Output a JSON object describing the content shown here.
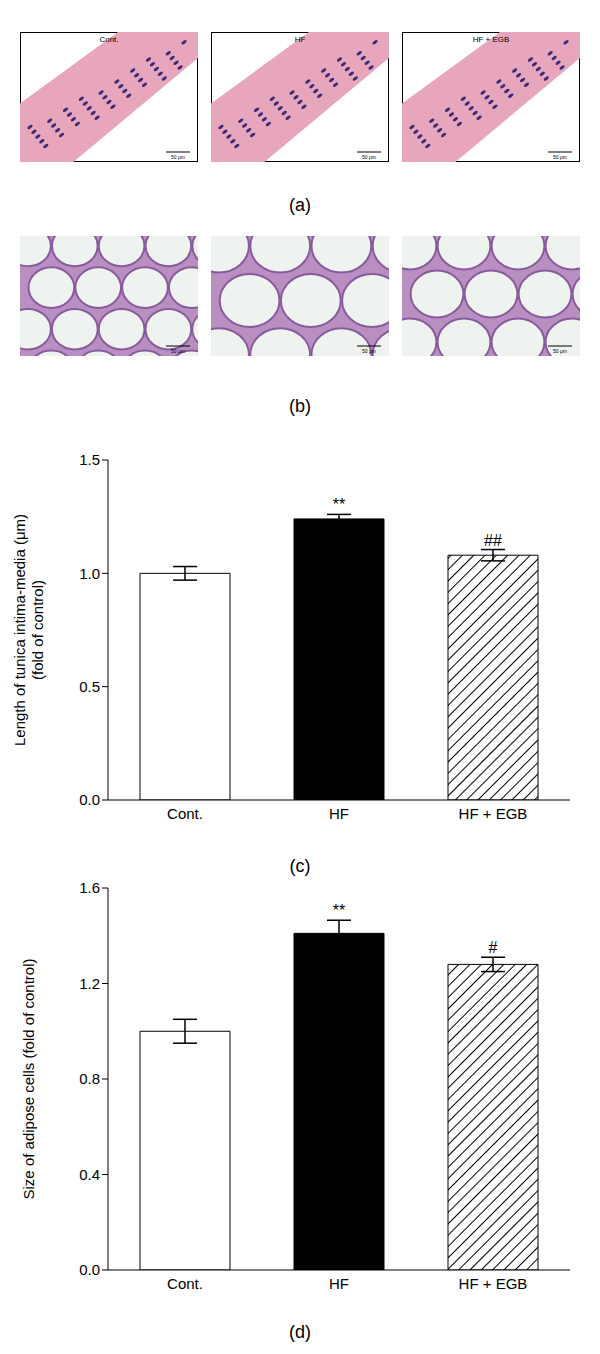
{
  "images": [
    {
      "label": "(a)",
      "panels": [
        "Cont.",
        "HF",
        "HF + EGB"
      ],
      "scale_bar": "50 μm"
    },
    {
      "label": "(b)",
      "scale_bar": "50 μm"
    }
  ],
  "chart_data": [
    {
      "type": "bar",
      "label": "(c)",
      "ylabel": [
        "Length of tunica intima-media (μm)",
        "(fold of control)"
      ],
      "categories": [
        "Cont.",
        "HF",
        "HF + EGB"
      ],
      "values": [
        1.0,
        1.24,
        1.08
      ],
      "errors": [
        0.03,
        0.02,
        0.025
      ],
      "annotations": [
        null,
        "**",
        "##"
      ],
      "colors": [
        "#ffffff",
        "#000000",
        "#ffffff"
      ],
      "ylim": [
        0,
        1.5
      ],
      "yticks": [
        {
          "value": 0,
          "label": "0.0"
        },
        {
          "value": 0.5,
          "label": "0.5"
        },
        {
          "value": 1,
          "label": "1.0"
        },
        {
          "value": 1.5,
          "label": "1.5"
        }
      ]
    },
    {
      "type": "bar",
      "label": "(d)",
      "ylabel": [
        "Size of adipose cells (fold of control)"
      ],
      "categories": [
        "Cont.",
        "HF",
        "HF + EGB"
      ],
      "values": [
        1.0,
        1.41,
        1.28
      ],
      "errors": [
        0.05,
        0.055,
        0.03
      ],
      "annotations": [
        null,
        "**",
        "#"
      ],
      "colors": [
        "#ffffff",
        "#000000",
        "#ffffff"
      ],
      "ylim": [
        0,
        1.6
      ],
      "yticks": [
        {
          "value": 0,
          "label": "0.0"
        },
        {
          "value": 0.4,
          "label": "0.4"
        },
        {
          "value": 0.8,
          "label": "0.8"
        },
        {
          "value": 1.2,
          "label": "1.2"
        },
        {
          "value": 1.6,
          "label": "1.6"
        }
      ]
    }
  ]
}
